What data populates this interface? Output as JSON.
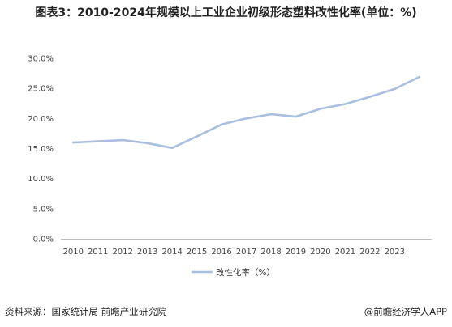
{
  "chart_data": {
    "type": "line",
    "title": "图表3：2010-2024年规模以上工业企业初级形态塑料改性化率(单位：%)",
    "categories": [
      "2010",
      "2011",
      "2012",
      "2013",
      "2014",
      "2015",
      "2016",
      "2017",
      "2018",
      "2019",
      "2020",
      "2021",
      "2022",
      "2023",
      ""
    ],
    "series": [
      {
        "name": "改性化率（%）",
        "color": "#a9bfe0",
        "values": [
          16.0,
          16.2,
          16.4,
          15.9,
          15.1,
          17.0,
          19.0,
          20.0,
          20.7,
          20.3,
          21.6,
          22.4,
          23.6,
          24.9,
          26.9
        ]
      }
    ],
    "ylim": [
      0,
      30
    ],
    "yticks": [
      "0.0%",
      "5.0%",
      "10.0%",
      "15.0%",
      "20.0%",
      "25.0%",
      "30.0%"
    ],
    "grid": false,
    "legend_position": "bottom"
  },
  "footer": {
    "source": "资料来源：国家统计局 前瞻产业研究院",
    "brand": "@前瞻经济学人APP"
  }
}
